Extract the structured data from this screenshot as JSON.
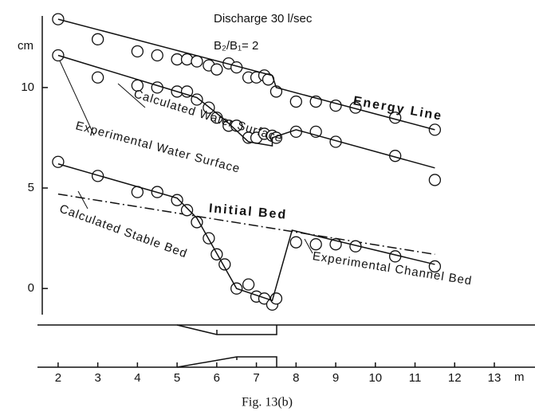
{
  "chart_data": {
    "type": "line",
    "title": "Discharge 30 l/sec",
    "subtitle": "B₂/B₁= 2",
    "y_label": "cm",
    "x_label": "m",
    "caption": "Fig. 13(b)",
    "xlim": [
      1.6,
      13
    ],
    "ylim": [
      -1.3,
      13.8
    ],
    "xticks": [
      2,
      3,
      4,
      5,
      6,
      7,
      8,
      9,
      10,
      11,
      12,
      13
    ],
    "yticks": [
      0,
      5,
      10
    ],
    "annotations": [
      "Energy Line",
      "Calculated Water Surface",
      "Experimental Water Surface",
      "Initial Bed",
      "Calculated Stable Bed",
      "Experimental Channel Bed"
    ],
    "series": [
      {
        "style": "markers",
        "color": "#111",
        "x": [
          2,
          3,
          4,
          4.5,
          5,
          5.25,
          5.5,
          5.8,
          6,
          6.3,
          6.5,
          6.8,
          7,
          7.2,
          7.3,
          7.5,
          8,
          8.5,
          9,
          9.5,
          10.5,
          11.5
        ],
        "values": [
          13.4,
          12.4,
          11.8,
          11.6,
          11.4,
          11.4,
          11.3,
          11.1,
          10.9,
          11.2,
          11,
          10.5,
          10.5,
          10.6,
          10.4,
          9.8,
          9.3,
          9.3,
          9.1,
          9,
          8.5,
          7.9
        ]
      },
      {
        "style": "line",
        "color": "#111",
        "x": [
          2,
          7.4,
          7.5,
          11.5
        ],
        "values": [
          13.4,
          10.6,
          10,
          7.9
        ]
      },
      {
        "style": "markers",
        "color": "#111",
        "x": [
          2,
          3,
          4,
          4.5,
          5,
          5.25,
          5.5,
          5.8,
          6,
          6.3,
          6.5,
          6.8,
          7,
          7.2,
          7.4,
          7.5,
          8,
          8.5,
          9,
          10.5,
          11.5
        ],
        "values": [
          11.6,
          10.5,
          10.1,
          10,
          9.8,
          9.8,
          9.4,
          9,
          8.5,
          8.1,
          8.1,
          7.5,
          7.5,
          7.7,
          7.6,
          7.5,
          7.8,
          7.8,
          7.3,
          6.6,
          5.4
        ]
      },
      {
        "style": "line",
        "color": "#111",
        "x": [
          2,
          4.5,
          5.5,
          6.2,
          6.8,
          7.4,
          7.4,
          8,
          11.5
        ],
        "values": [
          11.6,
          10.1,
          9.5,
          8.4,
          7.3,
          7.1,
          7.5,
          7.9,
          6
        ]
      },
      {
        "style": "dashdot",
        "color": "#111",
        "x": [
          2,
          11.5
        ],
        "values": [
          4.7,
          1.7
        ]
      },
      {
        "style": "markers",
        "color": "#111",
        "x": [
          2,
          3,
          4,
          4.5,
          5,
          5.25,
          5.5,
          5.8,
          6,
          6.2,
          6.5,
          6.8,
          7,
          7.2,
          7.4,
          7.5,
          8,
          8.5,
          9,
          9.5,
          10.5,
          11.5
        ],
        "values": [
          6.3,
          5.6,
          4.8,
          4.8,
          4.4,
          3.9,
          3.3,
          2.5,
          1.7,
          1.2,
          0,
          0.2,
          -0.4,
          -0.5,
          -0.8,
          -0.5,
          2.3,
          2.2,
          2.2,
          2.1,
          1.6,
          1.1
        ]
      },
      {
        "style": "line",
        "color": "#111",
        "x": [
          2,
          5,
          5.5,
          6.5,
          7.4,
          7.9,
          11.5
        ],
        "values": [
          6.2,
          4.5,
          3.5,
          0,
          -0.6,
          2.9,
          1.2
        ]
      }
    ]
  }
}
